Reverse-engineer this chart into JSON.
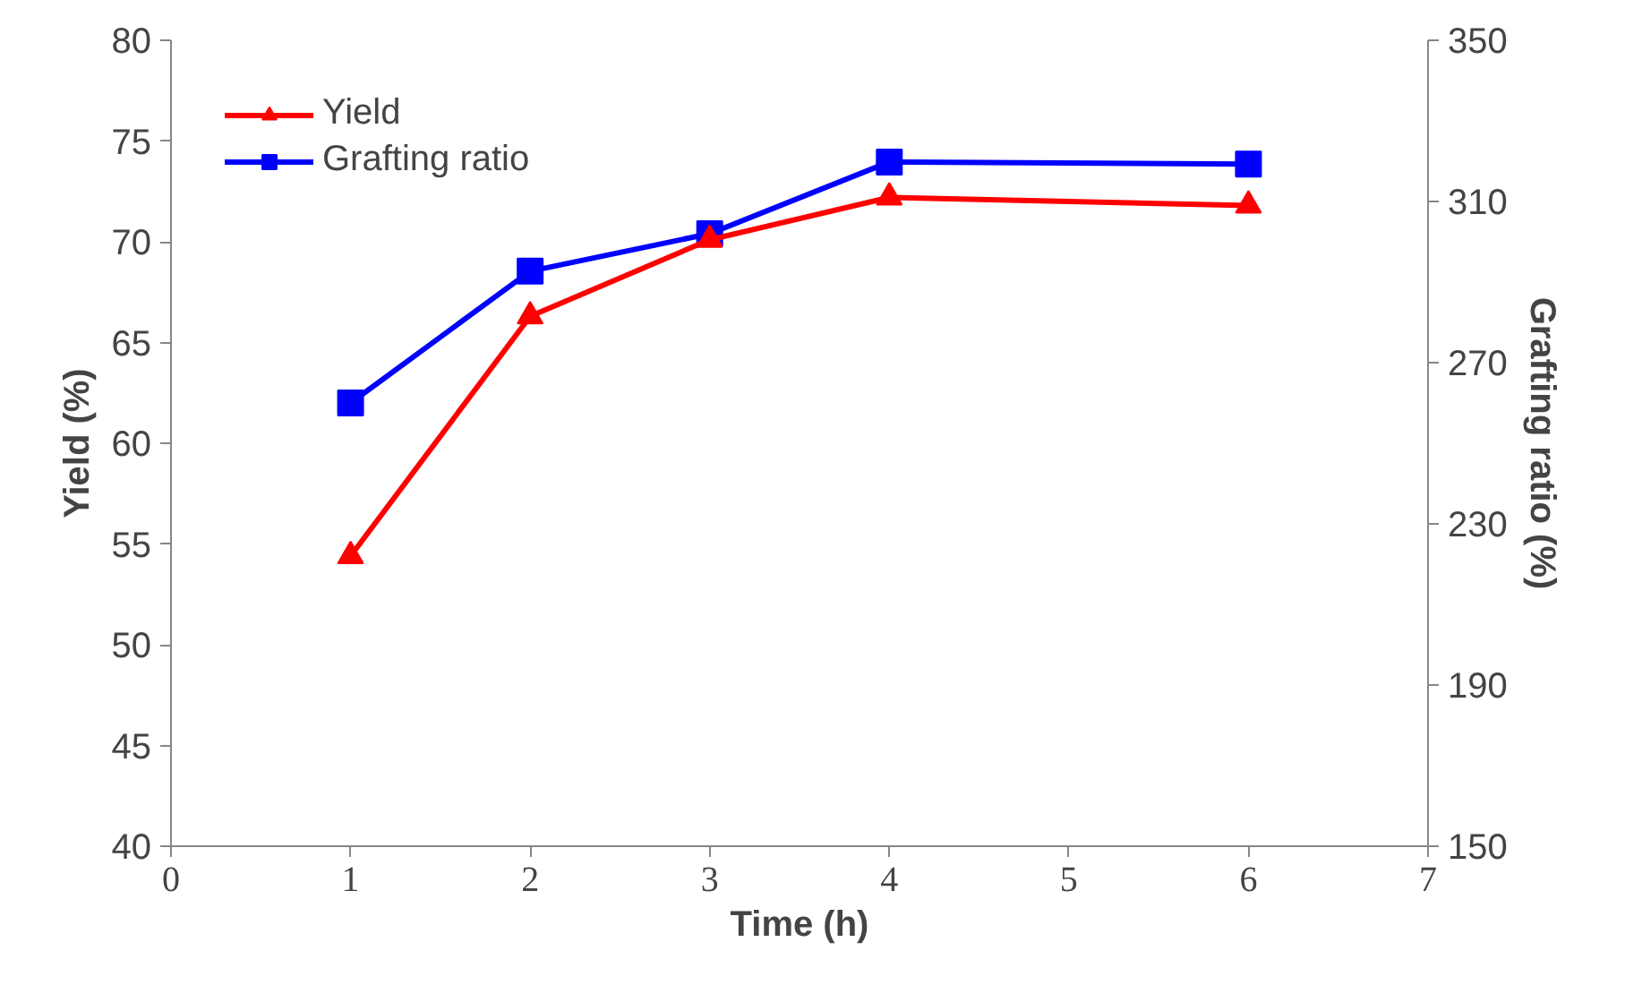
{
  "chart_data": {
    "type": "line",
    "xlabel": "Time (h)",
    "ylabel": "Yield (%)",
    "y2label": "Grafting ratio (%)",
    "x": [
      1,
      2,
      3,
      4,
      6
    ],
    "series": [
      {
        "name": "Yield",
        "color": "#ff0000",
        "values": [
          54.4,
          66.3,
          70.1,
          72.2,
          71.8
        ],
        "marker": "triangle"
      },
      {
        "name": "Grafting ratio",
        "color": "#0000ff",
        "values": [
          260,
          292.7,
          302,
          319.8,
          319.3
        ],
        "marker": "square",
        "axis": "y2"
      }
    ],
    "xlim": [
      0,
      7
    ],
    "xticks": [
      0,
      1,
      2,
      3,
      4,
      5,
      6,
      7
    ],
    "ylim": [
      40,
      80
    ],
    "yticks": [
      40,
      45,
      50,
      55,
      60,
      65,
      70,
      75,
      80
    ],
    "y2lim": [
      150,
      350
    ],
    "y2ticks": [
      150,
      190,
      230,
      270,
      310,
      350
    ],
    "grid": false,
    "legend": "top left",
    "line_style": "solid"
  }
}
